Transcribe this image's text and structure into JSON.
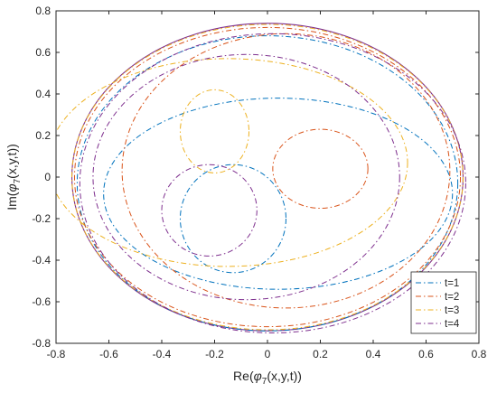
{
  "chart_data": {
    "type": "line",
    "title": "",
    "xlabel": {
      "prefix": "Re(",
      "sym": "φ",
      "sub": "7",
      "suffix": "(x,y,t))"
    },
    "ylabel": {
      "prefix": "Im(",
      "sym": "φ",
      "sub": "7",
      "suffix": "(x,y,t))"
    },
    "xlim": [
      -0.8,
      0.8
    ],
    "ylim": [
      -0.8,
      0.8
    ],
    "xticks": [
      -0.8,
      -0.6,
      -0.4,
      -0.2,
      0,
      0.2,
      0.4,
      0.6,
      0.8
    ],
    "yticks": [
      -0.8,
      -0.6,
      -0.4,
      -0.2,
      0,
      0.2,
      0.4,
      0.6,
      0.8
    ],
    "xtick_labels": [
      "-0.8",
      "-0.6",
      "-0.4",
      "-0.2",
      "0",
      "0.2",
      "0.4",
      "0.6",
      "0.8"
    ],
    "ytick_labels": [
      "-0.8",
      "-0.6",
      "-0.4",
      "-0.2",
      "0",
      "0.2",
      "0.4",
      "0.6",
      "0.8"
    ],
    "grid": false,
    "legend_position": "bottom-right",
    "background_curve": {
      "shape": "circle",
      "center": [
        0,
        0
      ],
      "radius": 0.74,
      "color": "#7E2F8E"
    },
    "series": [
      {
        "name": "t=1",
        "color": "#0072BD",
        "line_style": "dash-dot",
        "loops": [
          {
            "cx": 0.0,
            "cy": -0.03,
            "rx": 0.72,
            "ry": 0.71
          },
          {
            "cx": 0.04,
            "cy": -0.08,
            "rx": 0.66,
            "ry": 0.46
          },
          {
            "cx": -0.13,
            "cy": -0.2,
            "rx": 0.2,
            "ry": 0.26
          }
        ]
      },
      {
        "name": "t=2",
        "color": "#D95319",
        "line_style": "dash-dot",
        "loops": [
          {
            "cx": 0.0,
            "cy": 0.0,
            "rx": 0.73,
            "ry": 0.72
          },
          {
            "cx": 0.07,
            "cy": 0.03,
            "rx": 0.62,
            "ry": 0.66
          },
          {
            "cx": 0.2,
            "cy": 0.04,
            "rx": 0.18,
            "ry": 0.19
          }
        ]
      },
      {
        "name": "t=3",
        "color": "#EDB120",
        "line_style": "dash-dot",
        "loops": [
          {
            "cx": 0.0,
            "cy": 0.0,
            "rx": 0.74,
            "ry": 0.735
          },
          {
            "cx": -0.15,
            "cy": 0.07,
            "rx": 0.68,
            "ry": 0.5
          },
          {
            "cx": -0.2,
            "cy": 0.22,
            "rx": 0.13,
            "ry": 0.2
          }
        ]
      },
      {
        "name": "t=4",
        "color": "#7E2F8E",
        "line_style": "dash-dot",
        "loops": [
          {
            "cx": 0.02,
            "cy": -0.03,
            "rx": 0.73,
            "ry": 0.72
          },
          {
            "cx": -0.08,
            "cy": 0.0,
            "rx": 0.58,
            "ry": 0.59
          },
          {
            "cx": -0.22,
            "cy": -0.16,
            "rx": 0.18,
            "ry": 0.22
          }
        ]
      }
    ]
  }
}
